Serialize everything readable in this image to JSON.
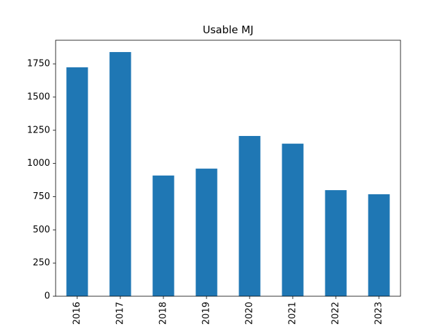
{
  "chart_data": {
    "type": "bar",
    "title": "Usable MJ",
    "categories": [
      "2016",
      "2017",
      "2018",
      "2019",
      "2020",
      "2021",
      "2022",
      "2023"
    ],
    "values": [
      1724,
      1839,
      909,
      961,
      1207,
      1149,
      799,
      768
    ],
    "color": "#1f77b4",
    "ylim": [
      0,
      1928
    ],
    "yticks": [
      0,
      250,
      500,
      750,
      1000,
      1250,
      1500,
      1750
    ],
    "grid": false
  }
}
